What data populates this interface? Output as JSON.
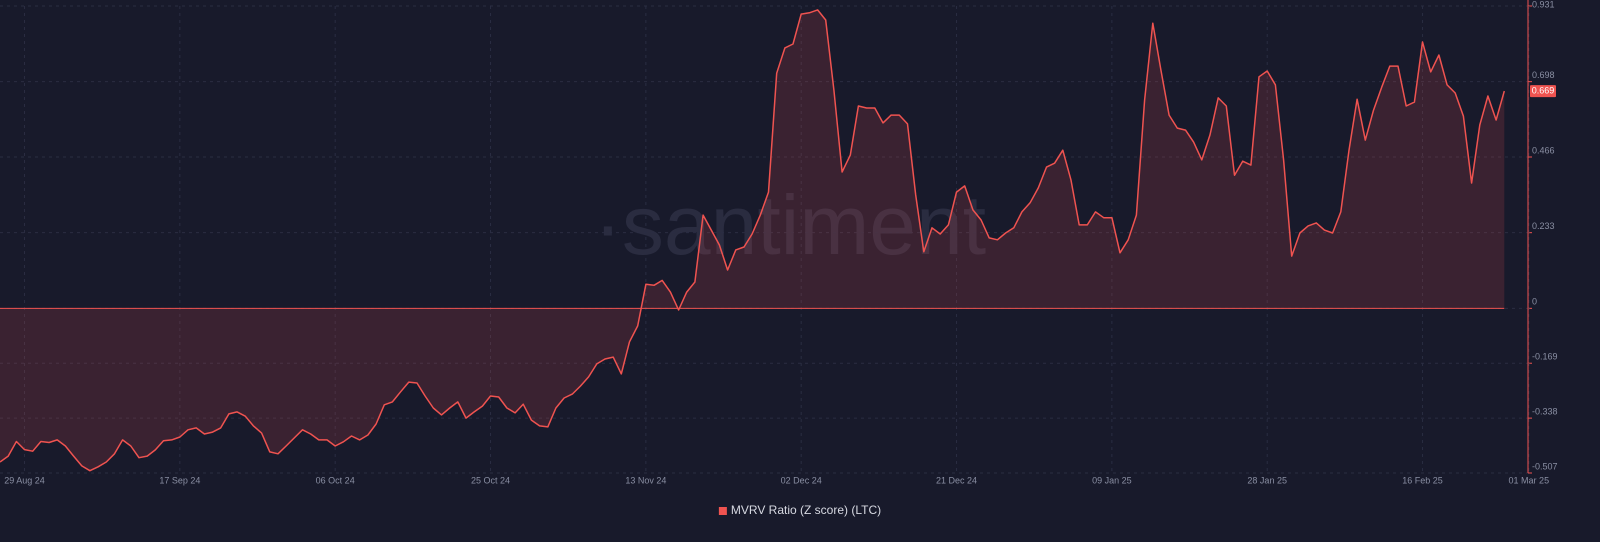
{
  "chart_data": {
    "type": "area",
    "watermark": "·santiment",
    "xlim": [
      "2024-08-26",
      "2025-03-02"
    ],
    "xticks": [
      {
        "value": "2024-08-29",
        "label": "29 Aug 24"
      },
      {
        "value": "2024-09-17",
        "label": "17 Sep 24"
      },
      {
        "value": "2024-10-06",
        "label": "06 Oct 24"
      },
      {
        "value": "2024-10-25",
        "label": "25 Oct 24"
      },
      {
        "value": "2024-11-13",
        "label": "13 Nov 24"
      },
      {
        "value": "2024-12-02",
        "label": "02 Dec 24"
      },
      {
        "value": "2024-12-21",
        "label": "21 Dec 24"
      },
      {
        "value": "2025-01-09",
        "label": "09 Jan 25"
      },
      {
        "value": "2025-01-28",
        "label": "28 Jan 25"
      },
      {
        "value": "2025-02-16",
        "label": "16 Feb 25"
      },
      {
        "value": "2025-03-01",
        "label": "01 Mar 25"
      }
    ],
    "ylim": [
      -0.507,
      0.931
    ],
    "yticks": [
      -0.507,
      -0.338,
      -0.169,
      0,
      0.233,
      0.466,
      0.698,
      0.931
    ],
    "grid": true,
    "legend": "bottom",
    "x": [
      "2024-08-26",
      "2024-08-27",
      "2024-08-28",
      "2024-08-29",
      "2024-08-30",
      "2024-08-31",
      "2024-09-01",
      "2024-09-02",
      "2024-09-03",
      "2024-09-04",
      "2024-09-05",
      "2024-09-06",
      "2024-09-07",
      "2024-09-08",
      "2024-09-09",
      "2024-09-10",
      "2024-09-11",
      "2024-09-12",
      "2024-09-13",
      "2024-09-14",
      "2024-09-15",
      "2024-09-16",
      "2024-09-17",
      "2024-09-18",
      "2024-09-19",
      "2024-09-20",
      "2024-09-21",
      "2024-09-22",
      "2024-09-23",
      "2024-09-24",
      "2024-09-25",
      "2024-09-26",
      "2024-09-27",
      "2024-09-28",
      "2024-09-29",
      "2024-09-30",
      "2024-10-01",
      "2024-10-02",
      "2024-10-03",
      "2024-10-04",
      "2024-10-05",
      "2024-10-06",
      "2024-10-07",
      "2024-10-08",
      "2024-10-09",
      "2024-10-10",
      "2024-10-11",
      "2024-10-12",
      "2024-10-13",
      "2024-10-14",
      "2024-10-15",
      "2024-10-16",
      "2024-10-17",
      "2024-10-18",
      "2024-10-19",
      "2024-10-20",
      "2024-10-21",
      "2024-10-22",
      "2024-10-23",
      "2024-10-24",
      "2024-10-25",
      "2024-10-26",
      "2024-10-27",
      "2024-10-28",
      "2024-10-29",
      "2024-10-30",
      "2024-10-31",
      "2024-11-01",
      "2024-11-02",
      "2024-11-03",
      "2024-11-04",
      "2024-11-05",
      "2024-11-06",
      "2024-11-07",
      "2024-11-08",
      "2024-11-09",
      "2024-11-10",
      "2024-11-11",
      "2024-11-12",
      "2024-11-13",
      "2024-11-14",
      "2024-11-15",
      "2024-11-16",
      "2024-11-17",
      "2024-11-18",
      "2024-11-19",
      "2024-11-20",
      "2024-11-21",
      "2024-11-22",
      "2024-11-23",
      "2024-11-24",
      "2024-11-25",
      "2024-11-26",
      "2024-11-27",
      "2024-11-28",
      "2024-11-29",
      "2024-11-30",
      "2024-12-01",
      "2024-12-02",
      "2024-12-03",
      "2024-12-04",
      "2024-12-05",
      "2024-12-06",
      "2024-12-07",
      "2024-12-08",
      "2024-12-09",
      "2024-12-10",
      "2024-12-11",
      "2024-12-12",
      "2024-12-13",
      "2024-12-14",
      "2024-12-15",
      "2024-12-16",
      "2024-12-17",
      "2024-12-18",
      "2024-12-19",
      "2024-12-20",
      "2024-12-21",
      "2024-12-22",
      "2024-12-23",
      "2024-12-24",
      "2024-12-25",
      "2024-12-26",
      "2024-12-27",
      "2024-12-28",
      "2024-12-29",
      "2024-12-30",
      "2024-12-31",
      "2025-01-01",
      "2025-01-02",
      "2025-01-03",
      "2025-01-04",
      "2025-01-05",
      "2025-01-06",
      "2025-01-07",
      "2025-01-08",
      "2025-01-09",
      "2025-01-10",
      "2025-01-11",
      "2025-01-12",
      "2025-01-13",
      "2025-01-14",
      "2025-01-15",
      "2025-01-16",
      "2025-01-17",
      "2025-01-18",
      "2025-01-19",
      "2025-01-20",
      "2025-01-21",
      "2025-01-22",
      "2025-01-23",
      "2025-01-24",
      "2025-01-25",
      "2025-01-26",
      "2025-01-27",
      "2025-01-28",
      "2025-01-29",
      "2025-01-30",
      "2025-01-31",
      "2025-02-01",
      "2025-02-02",
      "2025-02-03",
      "2025-02-04",
      "2025-02-05",
      "2025-02-06",
      "2025-02-07",
      "2025-02-08",
      "2025-02-09",
      "2025-02-10",
      "2025-02-11",
      "2025-02-12",
      "2025-02-13",
      "2025-02-14",
      "2025-02-15",
      "2025-02-16",
      "2025-02-17",
      "2025-02-18",
      "2025-02-19",
      "2025-02-20",
      "2025-02-21",
      "2025-02-22",
      "2025-02-23",
      "2025-02-24",
      "2025-02-25",
      "2025-02-26"
    ],
    "series": [
      {
        "name": "MVRV Ratio (Z score) (LTC)",
        "color": "#ef5350",
        "values": [
          -0.473,
          -0.455,
          -0.41,
          -0.435,
          -0.44,
          -0.41,
          -0.413,
          -0.405,
          -0.424,
          -0.455,
          -0.485,
          -0.5,
          -0.488,
          -0.473,
          -0.448,
          -0.405,
          -0.424,
          -0.46,
          -0.455,
          -0.436,
          -0.408,
          -0.405,
          -0.396,
          -0.374,
          -0.368,
          -0.387,
          -0.381,
          -0.368,
          -0.325,
          -0.319,
          -0.332,
          -0.362,
          -0.384,
          -0.442,
          -0.448,
          -0.424,
          -0.399,
          -0.374,
          -0.387,
          -0.405,
          -0.405,
          -0.424,
          -0.411,
          -0.393,
          -0.405,
          -0.39,
          -0.356,
          -0.297,
          -0.288,
          -0.257,
          -0.227,
          -0.23,
          -0.27,
          -0.307,
          -0.328,
          -0.307,
          -0.288,
          -0.338,
          -0.319,
          -0.301,
          -0.27,
          -0.273,
          -0.307,
          -0.322,
          -0.295,
          -0.344,
          -0.362,
          -0.365,
          -0.307,
          -0.276,
          -0.264,
          -0.239,
          -0.211,
          -0.171,
          -0.156,
          -0.15,
          -0.202,
          -0.103,
          -0.054,
          0.074,
          0.071,
          0.086,
          0.05,
          -0.005,
          0.05,
          0.081,
          0.287,
          0.241,
          0.195,
          0.118,
          0.18,
          0.189,
          0.229,
          0.287,
          0.358,
          0.724,
          0.802,
          0.814,
          0.906,
          0.91,
          0.919,
          0.888,
          0.672,
          0.42,
          0.472,
          0.623,
          0.617,
          0.617,
          0.571,
          0.595,
          0.595,
          0.568,
          0.349,
          0.174,
          0.248,
          0.229,
          0.257,
          0.358,
          0.377,
          0.303,
          0.272,
          0.217,
          0.211,
          0.232,
          0.248,
          0.297,
          0.325,
          0.371,
          0.435,
          0.447,
          0.487,
          0.395,
          0.257,
          0.257,
          0.297,
          0.279,
          0.279,
          0.171,
          0.211,
          0.287,
          0.641,
          0.878,
          0.734,
          0.595,
          0.555,
          0.549,
          0.512,
          0.457,
          0.534,
          0.648,
          0.623,
          0.41,
          0.453,
          0.441,
          0.713,
          0.731,
          0.688,
          0.457,
          0.161,
          0.232,
          0.254,
          0.263,
          0.241,
          0.232,
          0.297,
          0.487,
          0.644,
          0.518,
          0.61,
          0.681,
          0.746,
          0.746,
          0.623,
          0.635,
          0.82,
          0.728,
          0.78,
          0.688,
          0.663,
          0.592,
          0.386,
          0.565,
          0.654,
          0.58,
          0.669
        ]
      }
    ]
  }
}
